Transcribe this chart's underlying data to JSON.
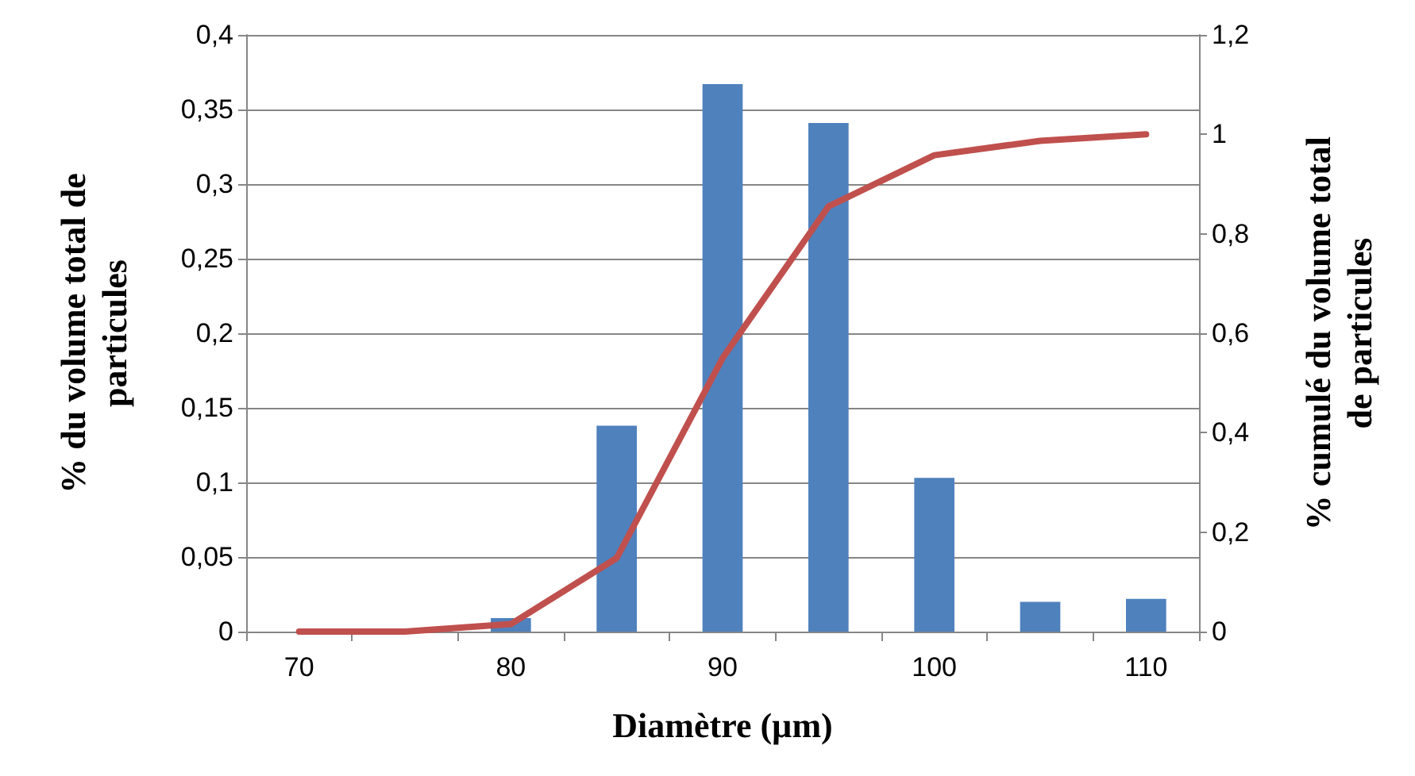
{
  "chart_data": {
    "type": "bar",
    "xlabel": "Diamètre (µm)",
    "ylabel": "% du volume total de particules",
    "y2label": "% cumulé du volume total de particules",
    "categories": [
      "70",
      null,
      "80",
      null,
      "90",
      null,
      "100",
      null,
      "110"
    ],
    "series": [
      {
        "color": "#4f81bd",
        "values": [
          0,
          0,
          0.009,
          0.138,
          0.367,
          0.341,
          0.103,
          0.02,
          0.022
        ]
      },
      {
        "type": "line",
        "axis": "y2",
        "color": "#c0504d",
        "marker": "none",
        "values": [
          0,
          0,
          0.015,
          0.148,
          0.55,
          0.855,
          0.958,
          0.987,
          1.0
        ]
      }
    ],
    "ylim": [
      0,
      0.4
    ],
    "yticks": [
      0,
      {
        "value": 0.05,
        "label": "0,05"
      },
      {
        "value": 0.1,
        "label": "0,1"
      },
      {
        "value": 0.15,
        "label": "0,15"
      },
      {
        "value": 0.2,
        "label": "0,2"
      },
      {
        "value": 0.25,
        "label": "0,25"
      },
      {
        "value": 0.3,
        "label": "0,3"
      },
      {
        "value": 0.35,
        "label": "0,35"
      },
      {
        "value": 0.4,
        "label": "0,4"
      }
    ],
    "y2lim": [
      0,
      1.2
    ],
    "y2ticks": [
      0,
      {
        "value": 0.2,
        "label": "0,2"
      },
      {
        "value": 0.4,
        "label": "0,4"
      },
      {
        "value": 0.6,
        "label": "0,6"
      },
      {
        "value": 0.8,
        "label": "0,8"
      },
      1,
      {
        "value": 1.2,
        "label": "1,2"
      }
    ],
    "grid": "y"
  }
}
